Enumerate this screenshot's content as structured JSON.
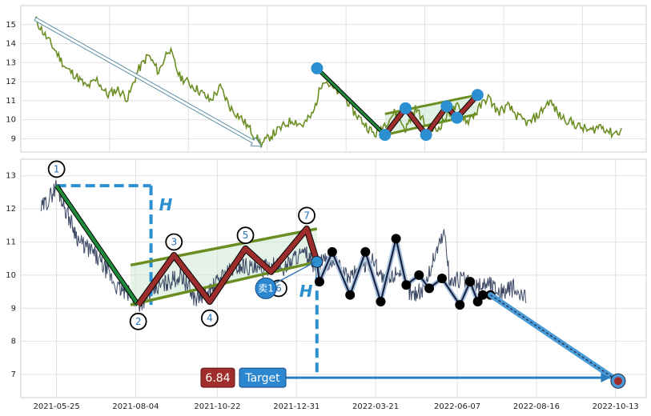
{
  "chart_data": [
    {
      "type": "line",
      "panel": "overview",
      "ylim": [
        8.3,
        16.0
      ],
      "yticks": [
        9,
        10,
        11,
        12,
        13,
        14,
        15
      ],
      "series": [
        {
          "color": "#6b8e23",
          "anchors": [
            [
              0,
              15.3
            ],
            [
              5,
              14.4
            ],
            [
              10,
              13.6
            ],
            [
              15,
              12.7
            ],
            [
              20,
              12.3
            ],
            [
              25,
              11.7
            ],
            [
              30,
              12.1
            ],
            [
              35,
              11.3
            ],
            [
              40,
              11.6
            ],
            [
              45,
              11.1
            ],
            [
              50,
              12.6
            ],
            [
              55,
              13.4
            ],
            [
              60,
              12.5
            ],
            [
              65,
              13.8
            ],
            [
              70,
              12.3
            ],
            [
              75,
              11.9
            ],
            [
              80,
              11.5
            ],
            [
              85,
              11.0
            ],
            [
              90,
              11.7
            ],
            [
              95,
              10.6
            ],
            [
              100,
              10.1
            ],
            [
              105,
              9.4
            ],
            [
              110,
              8.7
            ],
            [
              115,
              9.2
            ],
            [
              120,
              9.6
            ],
            [
              125,
              10.0
            ],
            [
              130,
              9.7
            ],
            [
              135,
              10.3
            ],
            [
              140,
              12.2
            ],
            [
              145,
              11.6
            ],
            [
              150,
              11.3
            ],
            [
              155,
              10.4
            ],
            [
              160,
              9.8
            ],
            [
              165,
              9.2
            ],
            [
              170,
              9.8
            ],
            [
              175,
              10.4
            ],
            [
              180,
              9.5
            ],
            [
              185,
              10.6
            ],
            [
              190,
              9.7
            ],
            [
              195,
              9.4
            ],
            [
              200,
              10.2
            ],
            [
              205,
              10.7
            ],
            [
              210,
              9.9
            ],
            [
              215,
              10.5
            ],
            [
              220,
              11.2
            ],
            [
              225,
              10.4
            ],
            [
              230,
              10.7
            ],
            [
              235,
              10.1
            ],
            [
              240,
              9.8
            ],
            [
              245,
              10.3
            ],
            [
              250,
              11.0
            ],
            [
              255,
              10.2
            ],
            [
              260,
              9.9
            ],
            [
              265,
              9.6
            ],
            [
              270,
              9.4
            ],
            [
              275,
              9.7
            ],
            [
              280,
              9.3
            ],
            [
              285,
              9.4
            ]
          ]
        }
      ],
      "trend_arrow": {
        "from": [
          0,
          15.3
        ],
        "to": [
          110,
          8.6
        ]
      },
      "down_leg": {
        "from": [
          137,
          12.7
        ],
        "to": [
          170,
          9.2
        ]
      },
      "zigzag": [
        [
          170,
          9.2
        ],
        [
          180,
          10.6
        ],
        [
          190,
          9.2
        ],
        [
          200,
          10.7
        ],
        [
          205,
          10.1
        ],
        [
          215,
          11.3
        ]
      ],
      "channel_upper": {
        "from": [
          170,
          10.3
        ],
        "to": [
          215,
          11.3
        ]
      },
      "channel_lower": {
        "from": [
          170,
          9.2
        ],
        "to": [
          215,
          10.3
        ]
      },
      "markers": [
        [
          137,
          12.7
        ],
        [
          170,
          9.2
        ],
        [
          180,
          10.6
        ],
        [
          190,
          9.2
        ],
        [
          200,
          10.7
        ],
        [
          205,
          10.1
        ],
        [
          215,
          11.3
        ]
      ]
    },
    {
      "type": "line",
      "panel": "detail",
      "ylim": [
        6.3,
        13.5
      ],
      "yticks": [
        7,
        8,
        9,
        10,
        11,
        12,
        13
      ],
      "xticks": [
        {
          "x": 6,
          "label": "2021-05-25"
        },
        {
          "x": 37,
          "label": "2021-08-04"
        },
        {
          "x": 69,
          "label": "2021-10-22"
        },
        {
          "x": 100,
          "label": "2021-12-31"
        },
        {
          "x": 131,
          "label": "2022-03-21"
        },
        {
          "x": 163,
          "label": "2022-06-07"
        },
        {
          "x": 194,
          "label": "2022-08-16"
        },
        {
          "x": 225,
          "label": "2022-10-13"
        }
      ],
      "xlim": [
        -8,
        237
      ],
      "price": {
        "color": "#3d4a66",
        "anchors": [
          [
            0,
            12.0
          ],
          [
            3,
            12.3
          ],
          [
            6,
            12.7
          ],
          [
            10,
            11.9
          ],
          [
            15,
            11.0
          ],
          [
            20,
            10.7
          ],
          [
            25,
            10.2
          ],
          [
            30,
            9.6
          ],
          [
            35,
            9.4
          ],
          [
            38,
            9.1
          ],
          [
            42,
            9.4
          ],
          [
            45,
            9.6
          ],
          [
            50,
            9.8
          ],
          [
            55,
            10.0
          ],
          [
            60,
            9.3
          ],
          [
            65,
            9.4
          ],
          [
            70,
            9.9
          ],
          [
            75,
            10.2
          ],
          [
            80,
            10.3
          ],
          [
            85,
            10.1
          ],
          [
            90,
            10.3
          ],
          [
            95,
            10.2
          ],
          [
            100,
            10.6
          ],
          [
            104,
            10.6
          ],
          [
            108,
            10.1
          ],
          [
            110,
            10.4
          ],
          [
            115,
            10.4
          ],
          [
            120,
            9.9
          ],
          [
            125,
            10.2
          ],
          [
            130,
            10.5
          ],
          [
            135,
            9.7
          ],
          [
            140,
            10.2
          ],
          [
            145,
            9.4
          ],
          [
            150,
            9.6
          ],
          [
            155,
            10.8
          ],
          [
            158,
            11.3
          ],
          [
            160,
            9.8
          ],
          [
            165,
            9.9
          ],
          [
            170,
            9.6
          ],
          [
            175,
            9.8
          ],
          [
            180,
            9.5
          ],
          [
            185,
            9.6
          ],
          [
            188,
            9.3
          ],
          [
            190,
            9.4
          ]
        ]
      },
      "down_leg": {
        "from": [
          6,
          12.7
        ],
        "to": [
          38,
          9.1
        ]
      },
      "zigzag": [
        [
          38,
          9.1
        ],
        [
          52,
          10.6
        ],
        [
          66,
          9.2
        ],
        [
          80,
          10.8
        ],
        [
          90,
          10.1
        ],
        [
          104,
          11.4
        ],
        [
          108,
          10.4
        ]
      ],
      "channel_upper": {
        "from": [
          35,
          10.3
        ],
        "to": [
          108,
          11.4
        ]
      },
      "channel_lower": {
        "from": [
          35,
          9.1
        ],
        "to": [
          108,
          10.4
        ]
      },
      "h_line_top": {
        "from": [
          6,
          12.7
        ],
        "to": [
          43,
          12.7
        ]
      },
      "h_line_vertical": {
        "x": 43,
        "from": 12.7,
        "to": 9.1
      },
      "h2_vertical": {
        "x": 108,
        "from": 10.4,
        "to": 6.9
      },
      "numbered_points": [
        {
          "label": "1",
          "x": 6,
          "y": 13.2
        },
        {
          "label": "2",
          "x": 38,
          "y": 8.6
        },
        {
          "label": "3",
          "x": 52,
          "y": 11.0
        },
        {
          "label": "4",
          "x": 66,
          "y": 8.7
        },
        {
          "label": "5",
          "x": 80,
          "y": 11.2
        },
        {
          "label": "6",
          "x": 93,
          "y": 9.6
        },
        {
          "label": "7",
          "x": 104,
          "y": 11.8
        }
      ],
      "projection_path": [
        [
          108,
          10.4
        ],
        [
          109,
          9.8
        ],
        [
          114,
          10.7
        ],
        [
          121,
          9.4
        ],
        [
          127,
          10.7
        ],
        [
          133,
          9.2
        ],
        [
          139,
          11.1
        ],
        [
          143,
          9.7
        ],
        [
          148,
          10.0
        ],
        [
          152,
          9.6
        ],
        [
          157,
          9.9
        ],
        [
          164,
          9.1
        ],
        [
          168,
          9.8
        ],
        [
          171,
          9.2
        ],
        [
          173,
          9.4
        ],
        [
          176,
          9.4
        ]
      ],
      "target_line": {
        "from": [
          176,
          9.4
        ],
        "to": [
          226,
          6.8
        ]
      },
      "target_arrow": {
        "from": [
          94,
          6.9
        ],
        "to": [
          223,
          6.9
        ]
      },
      "target_marker": [
        226,
        6.8
      ],
      "sell_marker": [
        88,
        9.6
      ]
    }
  ],
  "annotations": {
    "h_label": "H",
    "h2_label": "H",
    "sell_label": "卖1",
    "target_value": "6.84",
    "target_label": "Target"
  },
  "colors": {
    "green_line": "#1e8b3a",
    "zigzag_red": "#9b2d2d",
    "channel": "#6b8e23",
    "dashed_blue": "#2b8fd0",
    "marker_blue": "#2b8fd0",
    "badge_red": "#a12c2c",
    "badge_blue": "#2b88d0"
  }
}
